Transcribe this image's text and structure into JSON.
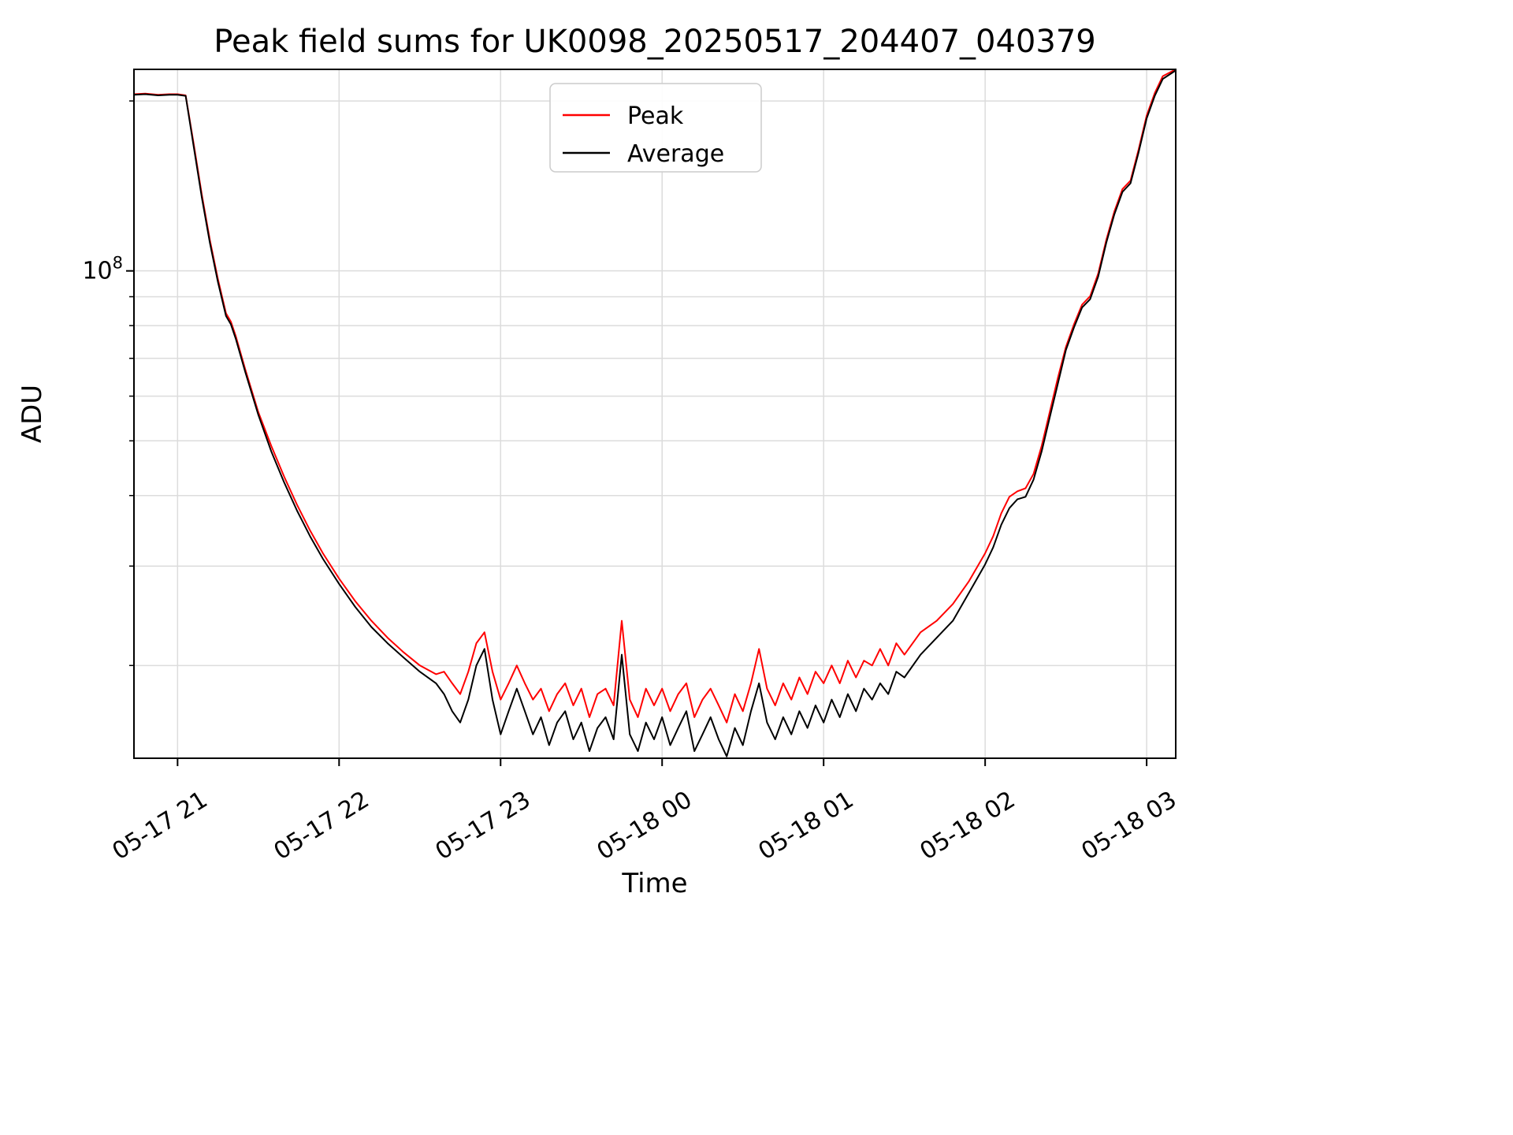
{
  "figure": {
    "background": "#ffffff",
    "grid_color": "#dcdcdc",
    "spine_color": "#000000"
  },
  "chart_data": {
    "type": "line",
    "title": "Peak field sums for UK0098_20250517_204407_040379",
    "xlabel": "Time",
    "ylabel": "ADU",
    "y_scale": "log",
    "values_unit": "millions of ADU",
    "xlim_hours": [
      20.73,
      27.18
    ],
    "ylim_millions": [
      13.7,
      227.5
    ],
    "x_ticks": [
      {
        "hour": 21,
        "label": "05-17 21"
      },
      {
        "hour": 22,
        "label": "05-17 22"
      },
      {
        "hour": 23,
        "label": "05-17 23"
      },
      {
        "hour": 24,
        "label": "05-18 00"
      },
      {
        "hour": 25,
        "label": "05-18 01"
      },
      {
        "hour": 26,
        "label": "05-18 02"
      },
      {
        "hour": 27,
        "label": "05-18 03"
      }
    ],
    "y_major_tick": {
      "value_millions": 100,
      "label_base": "10",
      "label_exp": "8"
    },
    "y_minor_ticks_millions": [
      20,
      30,
      40,
      50,
      60,
      70,
      80,
      90,
      200
    ],
    "legend": {
      "position": "upper center"
    },
    "x_hours": [
      20.73,
      20.8,
      20.88,
      20.95,
      21.0,
      21.05,
      21.1,
      21.15,
      21.2,
      21.25,
      21.3,
      21.33,
      21.36,
      21.42,
      21.5,
      21.58,
      21.66,
      21.74,
      21.82,
      21.9,
      22.0,
      22.1,
      22.2,
      22.3,
      22.4,
      22.5,
      22.6,
      22.65,
      22.7,
      22.75,
      22.8,
      22.85,
      22.9,
      22.95,
      23.0,
      23.05,
      23.1,
      23.15,
      23.2,
      23.25,
      23.3,
      23.35,
      23.4,
      23.45,
      23.5,
      23.55,
      23.6,
      23.65,
      23.7,
      23.75,
      23.8,
      23.85,
      23.9,
      23.95,
      24.0,
      24.05,
      24.1,
      24.15,
      24.2,
      24.25,
      24.3,
      24.35,
      24.4,
      24.45,
      24.5,
      24.55,
      24.6,
      24.65,
      24.7,
      24.75,
      24.8,
      24.85,
      24.9,
      24.95,
      25.0,
      25.05,
      25.1,
      25.15,
      25.2,
      25.25,
      25.3,
      25.35,
      25.4,
      25.45,
      25.5,
      25.6,
      25.7,
      25.8,
      25.9,
      26.0,
      26.05,
      26.1,
      26.15,
      26.2,
      26.25,
      26.3,
      26.35,
      26.4,
      26.45,
      26.5,
      26.55,
      26.6,
      26.65,
      26.7,
      26.75,
      26.8,
      26.85,
      26.9,
      26.95,
      27.0,
      27.05,
      27.1,
      27.18
    ],
    "series": [
      {
        "name": "Peak",
        "color": "#ff0000",
        "values_millions": [
          205.6,
          206.1,
          205.1,
          205.6,
          205.6,
          204.6,
          167.9,
          136.5,
          113.5,
          96.6,
          84.1,
          81.3,
          76.7,
          66.8,
          56.2,
          49.0,
          43.2,
          38.5,
          34.7,
          31.6,
          28.5,
          26.0,
          24.0,
          22.4,
          21.1,
          20.0,
          19.3,
          19.5,
          18.6,
          17.8,
          19.5,
          21.9,
          22.9,
          19.5,
          17.4,
          18.6,
          20.0,
          18.6,
          17.4,
          18.2,
          16.6,
          17.8,
          18.6,
          17.0,
          18.2,
          16.2,
          17.8,
          18.2,
          17.0,
          24.0,
          17.4,
          16.2,
          18.2,
          17.0,
          18.2,
          16.6,
          17.8,
          18.6,
          16.2,
          17.4,
          18.2,
          17.0,
          15.85,
          17.8,
          16.6,
          18.6,
          21.4,
          18.2,
          17.0,
          18.6,
          17.4,
          19.05,
          17.8,
          19.5,
          18.6,
          20.0,
          18.6,
          20.4,
          19.05,
          20.4,
          20.0,
          21.4,
          20.0,
          21.9,
          20.9,
          22.9,
          24.0,
          25.7,
          28.2,
          31.6,
          33.9,
          37.2,
          39.8,
          40.7,
          41.2,
          43.7,
          49.0,
          56.2,
          64.6,
          73.3,
          80.4,
          87.1,
          90.2,
          98.9,
          113.5,
          127.4,
          139.6,
          144.5,
          164.1,
          188.4,
          206.5,
          221.3,
          227.5
        ]
      },
      {
        "name": "Average",
        "color": "#000000",
        "values_millions": [
          205.1,
          205.6,
          204.6,
          205.1,
          205.1,
          204.2,
          166.0,
          134.9,
          112.2,
          95.5,
          83.2,
          80.4,
          75.9,
          66.1,
          55.6,
          47.9,
          42.2,
          37.6,
          33.9,
          30.9,
          27.9,
          25.4,
          23.4,
          21.9,
          20.65,
          19.5,
          18.6,
          17.8,
          16.6,
          15.85,
          17.4,
          20.0,
          21.4,
          17.4,
          15.1,
          16.6,
          18.2,
          16.6,
          15.1,
          16.2,
          14.45,
          15.85,
          16.6,
          14.8,
          15.85,
          14.1,
          15.5,
          16.2,
          14.8,
          20.9,
          15.1,
          14.1,
          15.85,
          14.8,
          16.2,
          14.45,
          15.5,
          16.6,
          14.1,
          15.1,
          16.2,
          14.8,
          13.8,
          15.5,
          14.45,
          16.6,
          18.6,
          15.85,
          14.8,
          16.2,
          15.1,
          16.6,
          15.5,
          17.0,
          15.85,
          17.4,
          16.2,
          17.8,
          16.6,
          18.2,
          17.4,
          18.6,
          17.8,
          19.5,
          19.05,
          20.9,
          22.4,
          24.0,
          26.9,
          30.2,
          32.4,
          35.5,
          38.0,
          39.4,
          39.8,
          42.7,
          47.9,
          55.0,
          63.1,
          72.4,
          79.4,
          86.1,
          89.1,
          97.7,
          112.2,
          125.9,
          138.0,
          142.9,
          162.2,
          186.2,
          204.2,
          218.8,
          226.5
        ]
      }
    ]
  }
}
